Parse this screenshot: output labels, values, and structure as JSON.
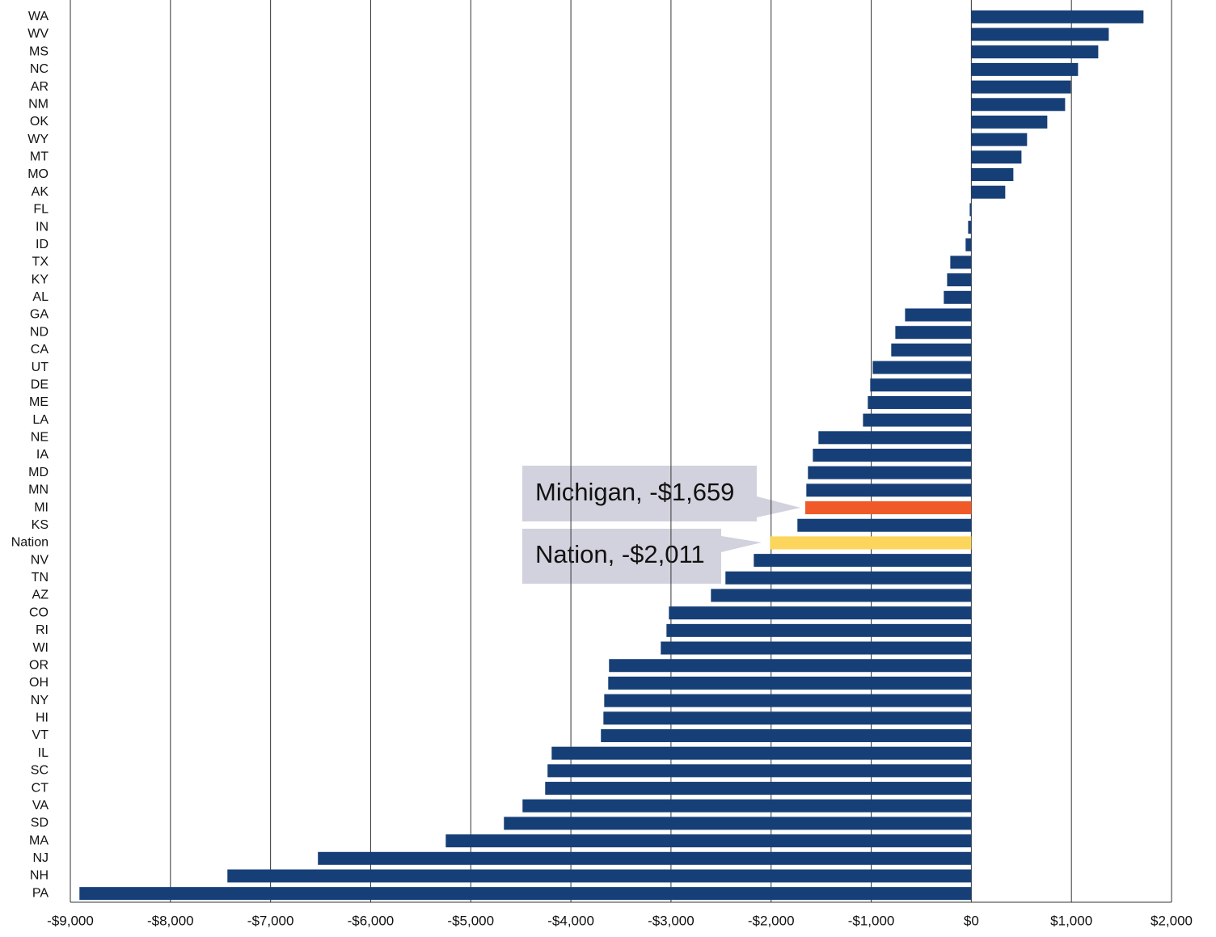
{
  "chart_data": {
    "type": "barh",
    "categories": [
      "WA",
      "WV",
      "MS",
      "NC",
      "AR",
      "NM",
      "OK",
      "WY",
      "MT",
      "MO",
      "AK",
      "FL",
      "IN",
      "ID",
      "TX",
      "KY",
      "AL",
      "GA",
      "ND",
      "CA",
      "UT",
      "DE",
      "ME",
      "LA",
      "NE",
      "IA",
      "MD",
      "MN",
      "MI",
      "KS",
      "Nation",
      "NV",
      "TN",
      "AZ",
      "CO",
      "RI",
      "WI",
      "OR",
      "OH",
      "NY",
      "HI",
      "VT",
      "IL",
      "SC",
      "CT",
      "VA",
      "SD",
      "MA",
      "NJ",
      "NH",
      "PA"
    ],
    "values": [
      1720,
      1373,
      1268,
      1066,
      994,
      937,
      759,
      557,
      501,
      420,
      339,
      -16,
      -32,
      -57,
      -210,
      -242,
      -275,
      -662,
      -759,
      -800,
      -985,
      -1010,
      -1034,
      -1082,
      -1527,
      -1583,
      -1632,
      -1648,
      -1659,
      -1737,
      -2011,
      -2173,
      -2456,
      -2601,
      -3021,
      -3045,
      -3102,
      -3619,
      -3627,
      -3667,
      -3675,
      -3700,
      -4192,
      -4233,
      -4257,
      -4483,
      -4669,
      -5250,
      -6527,
      -7431,
      -8909
    ],
    "colors": [
      "#173f77",
      "#173f77",
      "#173f77",
      "#173f77",
      "#173f77",
      "#173f77",
      "#173f77",
      "#173f77",
      "#173f77",
      "#173f77",
      "#173f77",
      "#173f77",
      "#173f77",
      "#173f77",
      "#173f77",
      "#173f77",
      "#173f77",
      "#173f77",
      "#173f77",
      "#173f77",
      "#173f77",
      "#173f77",
      "#173f77",
      "#173f77",
      "#173f77",
      "#173f77",
      "#173f77",
      "#173f77",
      "#f05a28",
      "#173f77",
      "#fcd55c",
      "#173f77",
      "#173f77",
      "#173f77",
      "#173f77",
      "#173f77",
      "#173f77",
      "#173f77",
      "#173f77",
      "#173f77",
      "#173f77",
      "#173f77",
      "#173f77",
      "#173f77",
      "#173f77",
      "#173f77",
      "#173f77",
      "#173f77",
      "#173f77",
      "#173f77",
      "#173f77"
    ],
    "xlim": [
      -9000,
      2000
    ],
    "xticks": [
      {
        "value": -9000,
        "label": "-$9,000"
      },
      {
        "value": -8000,
        "label": "-$8,000"
      },
      {
        "value": -7000,
        "label": "-$7,000"
      },
      {
        "value": -6000,
        "label": "-$6,000"
      },
      {
        "value": -5000,
        "label": "-$5,000"
      },
      {
        "value": -4000,
        "label": "-$4,000"
      },
      {
        "value": -3000,
        "label": "-$3,000"
      },
      {
        "value": -2000,
        "label": "-$2,000"
      },
      {
        "value": -1000,
        "label": "-$1,000"
      },
      {
        "value": 0,
        "label": "$0"
      },
      {
        "value": 1000,
        "label": "$1,000"
      },
      {
        "value": 2000,
        "label": "$2,000"
      }
    ],
    "grid": true,
    "annotations": [
      "Michigan, -$1,659",
      "Nation, -$2,011"
    ]
  }
}
